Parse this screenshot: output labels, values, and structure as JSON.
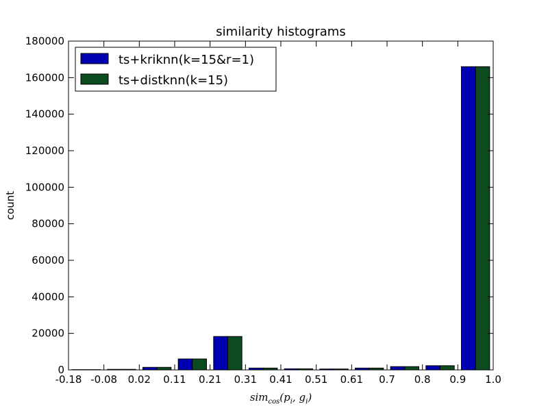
{
  "chart_data": {
    "type": "bar",
    "title": "similarity histograms",
    "ylabel": "count",
    "xlabel": {
      "main": "sim",
      "sub": "cos",
      "args_open": "(p",
      "arg1_sub": "i",
      "comma": ", g",
      "arg2_sub": "i",
      "args_close": ")"
    },
    "x_tick_labels": [
      "-0.18",
      "-0.08",
      "0.02",
      "0.11",
      "0.21",
      "0.31",
      "0.41",
      "0.51",
      "0.61",
      "0.7",
      "0.8",
      "0.9",
      "1.0"
    ],
    "y_tick_labels": [
      "0",
      "20000",
      "40000",
      "60000",
      "80000",
      "100000",
      "120000",
      "140000",
      "160000",
      "180000"
    ],
    "ylim": [
      0,
      180000
    ],
    "y_ticks": [
      0,
      20000,
      40000,
      60000,
      80000,
      100000,
      120000,
      140000,
      160000,
      180000
    ],
    "series": [
      {
        "name": "ts+kriknn(k=15&r=1)",
        "color": "#0000b3",
        "values": [
          150,
          300,
          1400,
          6000,
          18300,
          1000,
          600,
          500,
          1000,
          1800,
          2300,
          166000
        ]
      },
      {
        "name": "ts+distknn(k=15)",
        "color": "#0c4b1f",
        "values": [
          150,
          300,
          1400,
          6000,
          18300,
          1000,
          600,
          500,
          1000,
          1800,
          2300,
          166000
        ]
      }
    ],
    "legend_position": "top-left",
    "grid": false
  }
}
